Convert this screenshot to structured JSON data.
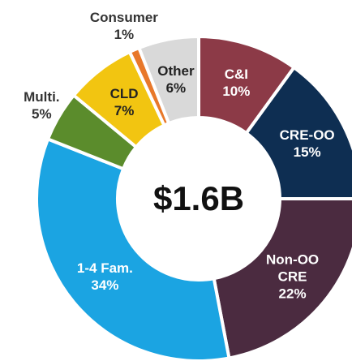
{
  "chart_data": {
    "type": "donut",
    "center_label": "$1.6B",
    "categories": [
      "C&I",
      "CRE-OO",
      "Non-OO CRE",
      "1-4 Fam.",
      "Multi.",
      "CLD",
      "Consumer",
      "Other"
    ],
    "values": [
      10,
      15,
      22,
      34,
      5,
      7,
      1,
      6
    ],
    "value_labels": [
      "10%",
      "15%",
      "22%",
      "34%",
      "5%",
      "7%",
      "1%",
      "6%"
    ],
    "colors": [
      "#8c3a47",
      "#0e2e52",
      "#4b2b40",
      "#1ba4e2",
      "#5b8c2c",
      "#f2c511",
      "#e8782a",
      "#d9d9d9"
    ]
  }
}
